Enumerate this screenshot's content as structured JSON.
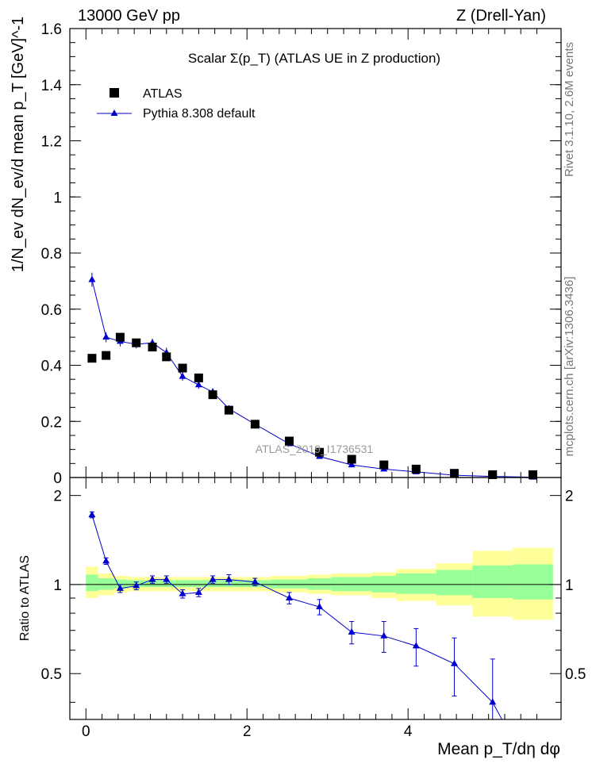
{
  "header": {
    "left": "13000 GeV pp",
    "right": "Z (Drell-Yan)"
  },
  "side_labels": {
    "rivet": "Rivet 3.1.10,  2.6M events",
    "mcplots": "mcplots.cern.ch [arXiv:1306.3436]"
  },
  "colors": {
    "data": "#000000",
    "mc": "#0000cc",
    "band_inner": "#99ff99",
    "band_outer": "#ffff99"
  },
  "chart_data": [
    {
      "type": "scatter",
      "title": "Scalar Σ(p_T) (ATLAS UE in Z production)",
      "ylabel": "1/N_ev dN_ev/d mean p_T [GeV]^-1",
      "watermark": "ATLAS_2019_I1736531",
      "xlim": [
        -0.2,
        5.9
      ],
      "ylim": [
        0,
        1.6
      ],
      "yticks": [
        0,
        0.2,
        0.4,
        0.6,
        0.8,
        1,
        1.2,
        1.4,
        1.6
      ],
      "ytick_labels": [
        "0",
        "0.2",
        "0.4",
        "0.6",
        "0.8",
        "1",
        "1.2",
        "1.4",
        "1.6"
      ],
      "legend_position": "top-left",
      "series": [
        {
          "name": "ATLAS",
          "marker": "square",
          "x": [
            0.075,
            0.25,
            0.425,
            0.625,
            0.825,
            1.0,
            1.2,
            1.4,
            1.575,
            1.775,
            2.1,
            2.525,
            2.9,
            3.3,
            3.7,
            4.1,
            4.575,
            5.05,
            5.55
          ],
          "y": [
            0.425,
            0.435,
            0.5,
            0.48,
            0.465,
            0.43,
            0.39,
            0.355,
            0.295,
            0.24,
            0.19,
            0.13,
            0.09,
            0.065,
            0.045,
            0.03,
            0.015,
            0.01,
            0.01
          ]
        },
        {
          "name": "Pythia 8.308 default",
          "marker": "triangle",
          "x": [
            0.075,
            0.25,
            0.425,
            0.625,
            0.825,
            1.0,
            1.2,
            1.4,
            1.575,
            1.775,
            2.1,
            2.525,
            2.9,
            3.3,
            3.7,
            4.1,
            4.575,
            5.05,
            5.55
          ],
          "y": [
            0.705,
            0.5,
            0.485,
            0.475,
            0.48,
            0.445,
            0.36,
            0.33,
            0.305,
            0.245,
            0.19,
            0.12,
            0.075,
            0.045,
            0.03,
            0.02,
            0.008,
            0.004,
            0.001
          ],
          "err": [
            0.025,
            0.018,
            0.018,
            0.015,
            0.015,
            0.018,
            0.015,
            0.014,
            0.013,
            0.01,
            0.007,
            0.005,
            0.004,
            0.003,
            0.002,
            0.002,
            0.001,
            0.001,
            0.001
          ]
        }
      ]
    },
    {
      "type": "scatter",
      "ylabel": "Ratio to ATLAS",
      "xlabel": "Mean p_T/dη dφ",
      "xlim": [
        -0.2,
        5.9
      ],
      "ylim": [
        0.35,
        2.3
      ],
      "xticks": [
        0,
        2,
        4
      ],
      "xtick_labels": [
        "0",
        "2",
        "4"
      ],
      "yticks": [
        0.5,
        1,
        2
      ],
      "ytick_labels": [
        "0.5",
        "1",
        "2"
      ],
      "reference_line": 1,
      "bands": {
        "edges": [
          0,
          0.15,
          0.35,
          0.525,
          0.725,
          0.925,
          1.1,
          1.3,
          1.5,
          1.65,
          1.9,
          2.3,
          2.75,
          3.05,
          3.55,
          3.85,
          4.35,
          4.8,
          5.3,
          5.8
        ],
        "outer_lo": [
          0.9,
          0.92,
          0.94,
          0.95,
          0.95,
          0.95,
          0.95,
          0.95,
          0.95,
          0.95,
          0.95,
          0.94,
          0.93,
          0.92,
          0.9,
          0.88,
          0.85,
          0.78,
          0.76
        ],
        "outer_hi": [
          1.15,
          1.09,
          1.07,
          1.06,
          1.06,
          1.06,
          1.06,
          1.06,
          1.06,
          1.06,
          1.06,
          1.07,
          1.08,
          1.09,
          1.1,
          1.13,
          1.18,
          1.3,
          1.33
        ],
        "inner_lo": [
          0.95,
          0.96,
          0.97,
          0.98,
          0.98,
          0.98,
          0.98,
          0.98,
          0.98,
          0.98,
          0.98,
          0.97,
          0.96,
          0.95,
          0.94,
          0.93,
          0.92,
          0.9,
          0.89
        ],
        "inner_hi": [
          1.08,
          1.05,
          1.04,
          1.035,
          1.035,
          1.035,
          1.035,
          1.035,
          1.035,
          1.035,
          1.035,
          1.04,
          1.05,
          1.06,
          1.07,
          1.09,
          1.12,
          1.16,
          1.17
        ]
      },
      "series": [
        {
          "name": "Pythia 8.308 default",
          "marker": "triangle",
          "x": [
            0.075,
            0.25,
            0.425,
            0.625,
            0.825,
            1.0,
            1.2,
            1.4,
            1.575,
            1.775,
            2.1,
            2.525,
            2.9,
            3.3,
            3.7,
            4.1,
            4.575,
            5.05
          ],
          "y": [
            1.72,
            1.2,
            0.97,
            0.99,
            1.04,
            1.04,
            0.93,
            0.94,
            1.04,
            1.04,
            1.02,
            0.9,
            0.84,
            0.69,
            0.67,
            0.62,
            0.54,
            0.4
          ],
          "err": [
            0.04,
            0.03,
            0.03,
            0.03,
            0.03,
            0.03,
            0.03,
            0.03,
            0.03,
            0.04,
            0.03,
            0.04,
            0.05,
            0.06,
            0.08,
            0.09,
            0.12,
            0.16
          ]
        }
      ]
    }
  ]
}
